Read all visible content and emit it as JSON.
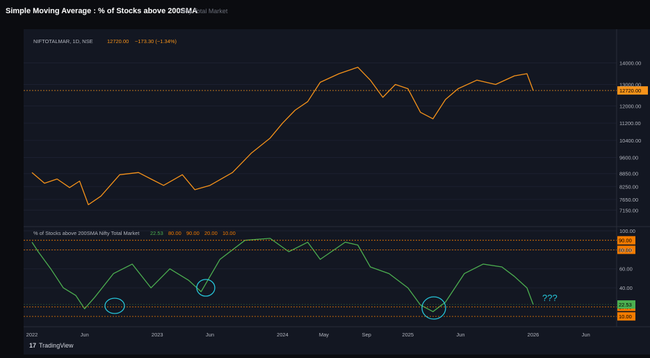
{
  "header": {
    "title": "Simple Moving Average : % of Stocks above 200SMA",
    "tab_label": "Nifty Total Market"
  },
  "branding": {
    "name": "TradingView",
    "mark": "17"
  },
  "colors": {
    "price_line": "#f7931a",
    "breadth_line": "#4caf50",
    "level_90": "#f57c00",
    "level_80": "#f57c00",
    "level_20": "#f57c00",
    "level_10": "#f57c00",
    "current_breadth": "#4caf50",
    "annotation": "#26c6da"
  },
  "x_axis": {
    "ticks": [
      "2022",
      "Jun",
      "2023",
      "Jun",
      "2024",
      "May",
      "Sep",
      "2025",
      "Jun",
      "2026",
      "Jun"
    ],
    "tick_t": [
      0.0,
      0.42,
      1.0,
      1.42,
      2.0,
      2.33,
      2.67,
      3.0,
      3.42,
      4.0,
      4.42
    ]
  },
  "chart_data": [
    {
      "type": "line",
      "legend": {
        "symbol": "NIFTOTALMAR, 1D, NSE",
        "last": "12720.00",
        "change": "−173.30 (−1.34%)"
      },
      "y_ticks": [
        "14000.00",
        "13000.00",
        "12000.00",
        "11200.00",
        "10400.00",
        "9600.00",
        "8850.00",
        "8250.00",
        "7650.00",
        "7150.00"
      ],
      "y_tick_values": [
        14000,
        13000,
        12000,
        11200,
        10400,
        9600,
        8850,
        8250,
        7650,
        7150
      ],
      "ylim": [
        6900,
        14600
      ],
      "last_value": 12720,
      "last_label": "12720.00",
      "x": [
        0.0,
        0.1,
        0.2,
        0.3,
        0.38,
        0.45,
        0.55,
        0.7,
        0.85,
        0.95,
        1.05,
        1.2,
        1.3,
        1.42,
        1.6,
        1.75,
        1.9,
        2.0,
        2.1,
        2.2,
        2.3,
        2.45,
        2.6,
        2.7,
        2.8,
        2.9,
        3.0,
        3.1,
        3.2,
        3.3,
        3.4,
        3.55,
        3.7,
        3.85,
        3.95,
        4.0
      ],
      "values": [
        8900,
        8400,
        8600,
        8200,
        8500,
        7400,
        7800,
        8800,
        8900,
        8600,
        8300,
        8800,
        8100,
        8300,
        8900,
        9800,
        10500,
        11200,
        11800,
        12200,
        13100,
        13500,
        13800,
        13200,
        12400,
        13000,
        12800,
        11700,
        11400,
        12300,
        12800,
        13200,
        13000,
        13400,
        13500,
        12720
      ]
    },
    {
      "type": "line",
      "legend": {
        "name": "% of Stocks above 200SMA Nifty Total Market",
        "values": [
          "22.53",
          "80.00",
          "90.00",
          "20.00",
          "10.00"
        ]
      },
      "y_ticks": [
        "100.00",
        "80.00",
        "60.00",
        "40.00"
      ],
      "y_tick_values": [
        100,
        80,
        60,
        40
      ],
      "ylim": [
        5,
        100
      ],
      "levels": [
        {
          "value": 90,
          "label": "90.00"
        },
        {
          "value": 80,
          "label": "80.00"
        },
        {
          "value": 20,
          "label": "20.00"
        },
        {
          "value": 10,
          "label": "10.00"
        }
      ],
      "last_value": 22.53,
      "last_label": "22.53",
      "x": [
        0.0,
        0.05,
        0.15,
        0.25,
        0.35,
        0.42,
        0.5,
        0.65,
        0.8,
        0.95,
        1.1,
        1.25,
        1.35,
        1.5,
        1.7,
        1.9,
        2.05,
        2.2,
        2.3,
        2.5,
        2.6,
        2.7,
        2.85,
        3.0,
        3.1,
        3.2,
        3.3,
        3.45,
        3.6,
        3.75,
        3.85,
        3.95,
        4.0
      ],
      "values": [
        88,
        78,
        60,
        40,
        32,
        18,
        30,
        55,
        65,
        40,
        60,
        48,
        36,
        70,
        90,
        92,
        78,
        88,
        70,
        88,
        85,
        62,
        55,
        40,
        22,
        15,
        25,
        55,
        65,
        62,
        52,
        40,
        22.53
      ]
    }
  ],
  "annotations": {
    "question": "???"
  }
}
